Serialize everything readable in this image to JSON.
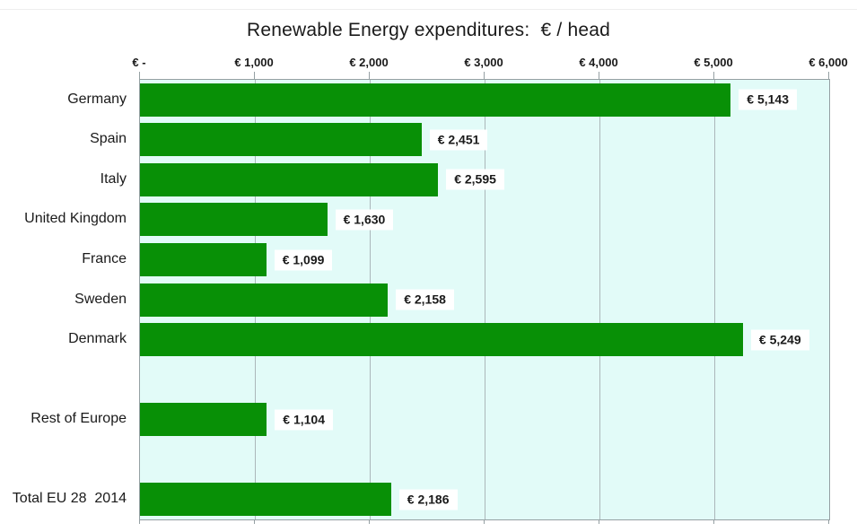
{
  "title": "Renewable Energy expenditures:  € / head",
  "colors": {
    "bar": "#089006",
    "plot_bg": "#e2fbf8",
    "gridline": "#abb7ba",
    "axis_border": "#95a0a3",
    "value_label_bg": "#ffffff",
    "text": "#1a1a1a"
  },
  "chart_data": {
    "type": "bar",
    "orientation": "horizontal",
    "title": "Renewable Energy expenditures:  € / head",
    "xlabel": "",
    "ylabel": "",
    "xlim": [
      0,
      6000
    ],
    "grid": true,
    "x_tick_values": [
      0,
      1000,
      2000,
      3000,
      4000,
      5000,
      6000
    ],
    "x_tick_labels": [
      "€ -",
      "€ 1,000",
      "€ 2,000",
      "€ 3,000",
      "€ 4,000",
      "€ 5,000",
      "€ 6,000"
    ],
    "categories": [
      "Germany",
      "Spain",
      "Italy",
      "United Kingdom",
      "France",
      "Sweden",
      "Denmark",
      "Rest of Europe",
      "Total EU 28  2014"
    ],
    "values": [
      5143,
      2451,
      2595,
      1630,
      1099,
      2158,
      5249,
      1104,
      2186
    ],
    "value_labels": [
      "€ 5,143",
      "€ 2,451",
      "€ 2,595",
      "€ 1,630",
      "€ 1,099",
      "€ 2,158",
      "€ 5,249",
      "€ 1,104",
      "€ 2,186"
    ],
    "rows": [
      {
        "label": "Germany",
        "value": 5143,
        "value_label": "€ 5,143"
      },
      {
        "label": "Spain",
        "value": 2451,
        "value_label": "€ 2,451"
      },
      {
        "label": "Italy",
        "value": 2595,
        "value_label": "€ 2,595"
      },
      {
        "label": "United Kingdom",
        "value": 1630,
        "value_label": "€ 1,630"
      },
      {
        "label": "France",
        "value": 1099,
        "value_label": "€ 1,099"
      },
      {
        "label": "Sweden",
        "value": 2158,
        "value_label": "€ 2,158"
      },
      {
        "label": "Denmark",
        "value": 5249,
        "value_label": "€ 5,249"
      },
      {
        "label": "",
        "value": null,
        "value_label": ""
      },
      {
        "label": "Rest of Europe",
        "value": 1104,
        "value_label": "€ 1,104"
      },
      {
        "label": "",
        "value": null,
        "value_label": ""
      },
      {
        "label": "Total EU 28  2014",
        "value": 2186,
        "value_label": "€ 2,186"
      }
    ]
  }
}
